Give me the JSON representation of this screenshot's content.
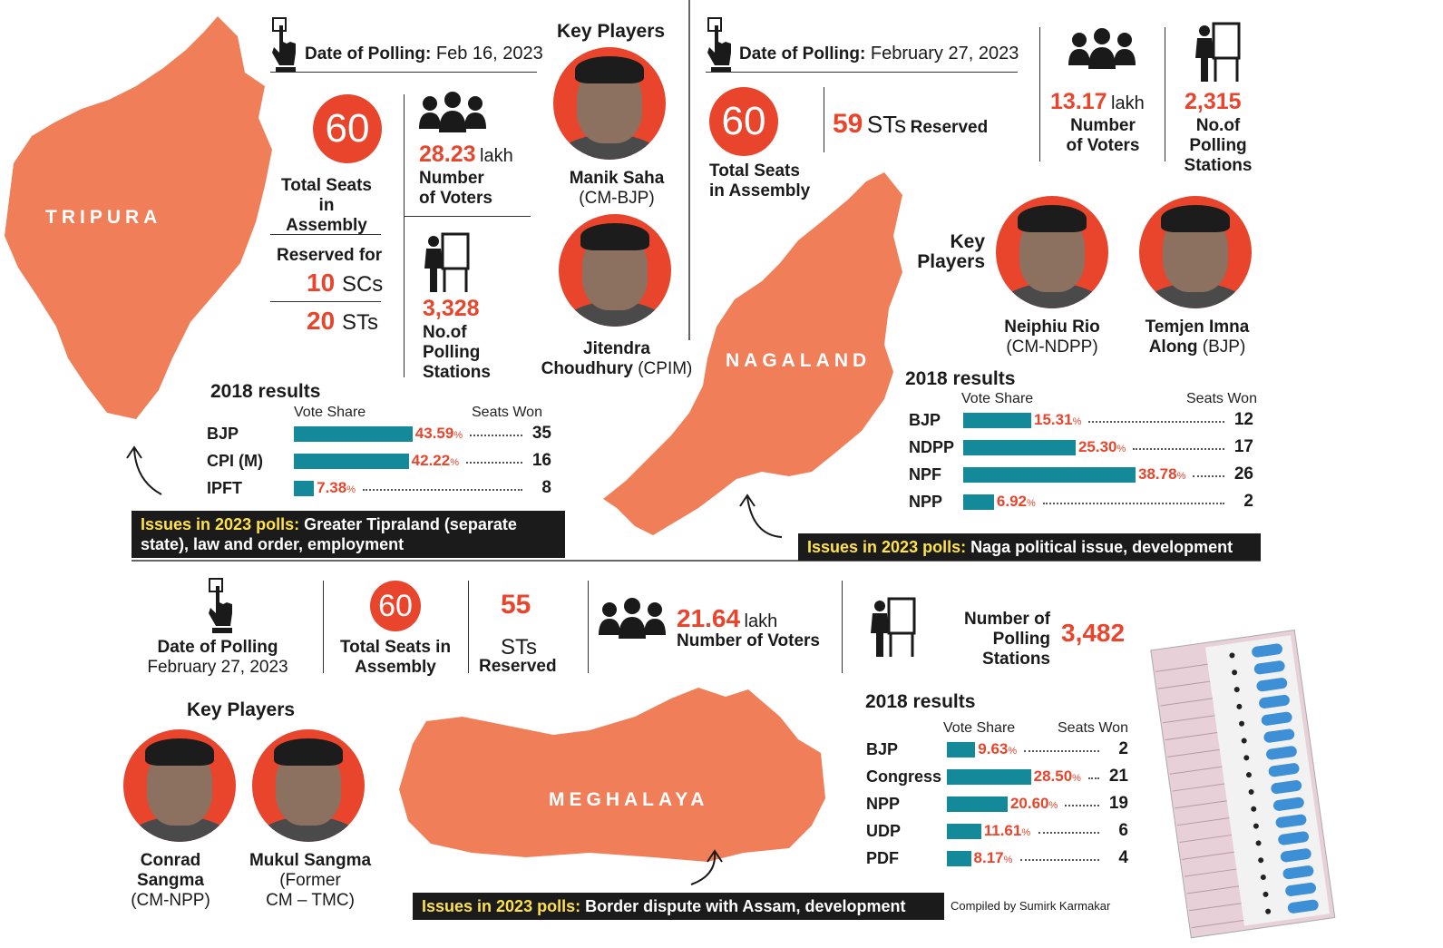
{
  "tripura": {
    "name": "TRIPURA",
    "polling_label": "Date of Polling:",
    "polling_date": "Feb 16, 2023",
    "seats": "60",
    "seats_label1": "Total Seats",
    "seats_label2": "in Assembly",
    "voters": "28.23",
    "voters_unit": "lakh",
    "voters_label1": "Number",
    "voters_label2": "of Voters",
    "reserved_label": "Reserved for",
    "sc_num": "10",
    "sc_label": "SCs",
    "st_num": "20",
    "st_label": "STs",
    "stations": "3,328",
    "stations_label1": "No.of",
    "stations_label2": "Polling",
    "stations_label3": "Stations",
    "key_players_label": "Key Players",
    "players": [
      {
        "name": "Manik Saha",
        "role": "(CM-BJP)"
      },
      {
        "name": "Jitendra",
        "name2": "Choudhury",
        "role": "(CPIM)"
      }
    ],
    "results_title": "2018 results",
    "issues_label": "Issues in 2023 polls:",
    "issues_text1": "Greater Tipraland (separate",
    "issues_text2": "state), law and order, employment"
  },
  "nagaland": {
    "name": "NAGALAND",
    "polling_label": "Date of Polling:",
    "polling_date": "February 27, 2023",
    "seats": "60",
    "seats_label1": "Total Seats",
    "seats_label2": "in Assembly",
    "st_num": "59",
    "st_label": "STs",
    "reserved_label": "Reserved",
    "voters": "13.17",
    "voters_unit": "lakh",
    "voters_label1": "Number",
    "voters_label2": "of Voters",
    "stations": "2,315",
    "stations_label1": "No.of",
    "stations_label2": "Polling",
    "stations_label3": "Stations",
    "key_players_label1": "Key",
    "key_players_label2": "Players",
    "players": [
      {
        "name": "Neiphiu Rio",
        "role": "(CM-NDPP)"
      },
      {
        "name": "Temjen Imna",
        "name2": "Along",
        "role": "(BJP)"
      }
    ],
    "results_title": "2018 results",
    "issues_label": "Issues in 2023 polls:",
    "issues_text": "Naga political issue, development"
  },
  "meghalaya": {
    "name": "MEGHALAYA",
    "polling_label": "Date of Polling",
    "polling_date": "February 27, 2023",
    "seats": "60",
    "seats_label1": "Total Seats in",
    "seats_label2": "Assembly",
    "st_num": "55",
    "st_label": "STs",
    "reserved_label": "Reserved",
    "voters": "21.64",
    "voters_unit": "lakh",
    "voters_label": "Number of Voters",
    "stations_label1": "Number of",
    "stations_label2": "Polling Stations",
    "stations": "3,482",
    "key_players_label": "Key Players",
    "players": [
      {
        "name": "Conrad",
        "name2": "Sangma",
        "role": "(CM-NPP)"
      },
      {
        "name": "Mukul Sangma",
        "name2": "(Former",
        "role": "CM – TMC)"
      }
    ],
    "results_title": "2018 results",
    "issues_label": "Issues in 2023 polls:",
    "issues_text": "Border dispute with Assam, development"
  },
  "common": {
    "vote_share_label": "Vote Share",
    "seats_won_label": "Seats Won",
    "pct_sign": "%",
    "credit": "Compiled by Sumirk Karmakar"
  },
  "colors": {
    "accent": "#e8452c",
    "map": "#f07f59",
    "bar": "#14899a",
    "banner": "#1b1b1b",
    "highlight": "#ffe14a"
  },
  "chart_data": [
    {
      "type": "bar",
      "title": "2018 results",
      "state": "Tripura",
      "categories": [
        "BJP",
        "CPI (M)",
        "IPFT"
      ],
      "series": [
        {
          "name": "Vote Share",
          "values": [
            43.59,
            42.22,
            7.38
          ]
        },
        {
          "name": "Seats Won",
          "values": [
            35,
            16,
            8
          ]
        }
      ]
    },
    {
      "type": "bar",
      "title": "2018 results",
      "state": "Nagaland",
      "categories": [
        "BJP",
        "NDPP",
        "NPF",
        "NPP"
      ],
      "series": [
        {
          "name": "Vote Share",
          "values": [
            15.31,
            25.3,
            38.78,
            6.92
          ]
        },
        {
          "name": "Seats Won",
          "values": [
            12,
            17,
            26,
            2
          ]
        }
      ]
    },
    {
      "type": "bar",
      "title": "2018 results",
      "state": "Meghalaya",
      "categories": [
        "BJP",
        "Congress",
        "NPP",
        "UDP",
        "PDF"
      ],
      "series": [
        {
          "name": "Vote Share",
          "values": [
            9.63,
            28.5,
            20.6,
            11.61,
            8.17
          ]
        },
        {
          "name": "Seats Won",
          "values": [
            2,
            21,
            19,
            6,
            4
          ]
        }
      ]
    }
  ],
  "pct_labels": {
    "t": [
      "43.59",
      "42.22",
      "7.38"
    ],
    "n": [
      "15.31",
      "25.30",
      "38.78",
      "6.92"
    ],
    "m": [
      "9.63",
      "28.50",
      "20.60",
      "11.61",
      "8.17"
    ]
  }
}
